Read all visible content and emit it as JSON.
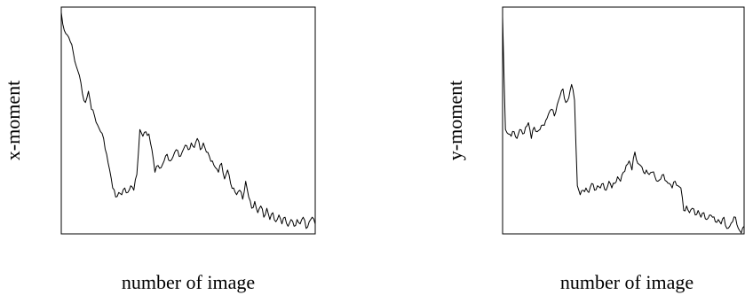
{
  "chart_data": [
    {
      "type": "line",
      "xlabel": "number of image",
      "ylabel": "x-moment",
      "grid": false,
      "series": [
        {
          "values": [
            0.98,
            0.9,
            0.88,
            0.85,
            0.8,
            0.74,
            0.7,
            0.62,
            0.58,
            0.63,
            0.55,
            0.52,
            0.48,
            0.45,
            0.42,
            0.35,
            0.28,
            0.2,
            0.16,
            0.18,
            0.17,
            0.2,
            0.18,
            0.21,
            0.19,
            0.26,
            0.46,
            0.43,
            0.45,
            0.44,
            0.37,
            0.27,
            0.3,
            0.29,
            0.32,
            0.35,
            0.32,
            0.34,
            0.37,
            0.34,
            0.36,
            0.39,
            0.37,
            0.4,
            0.38,
            0.42,
            0.37,
            0.4,
            0.36,
            0.34,
            0.32,
            0.29,
            0.27,
            0.31,
            0.24,
            0.28,
            0.22,
            0.2,
            0.17,
            0.19,
            0.15,
            0.23,
            0.16,
            0.11,
            0.14,
            0.09,
            0.12,
            0.07,
            0.11,
            0.06,
            0.09,
            0.05,
            0.08,
            0.04,
            0.07,
            0.03,
            0.06,
            0.03,
            0.06,
            0.04,
            0.07,
            0.02,
            0.05,
            0.07,
            0.04
          ]
        }
      ]
    },
    {
      "type": "line",
      "xlabel": "number of image",
      "ylabel": "y-moment",
      "grid": false,
      "series": [
        {
          "values": [
            0.96,
            0.46,
            0.44,
            0.43,
            0.45,
            0.42,
            0.46,
            0.44,
            0.47,
            0.49,
            0.42,
            0.47,
            0.45,
            0.46,
            0.48,
            0.5,
            0.53,
            0.55,
            0.52,
            0.57,
            0.61,
            0.64,
            0.58,
            0.6,
            0.66,
            0.59,
            0.21,
            0.17,
            0.19,
            0.2,
            0.18,
            0.22,
            0.19,
            0.21,
            0.2,
            0.22,
            0.19,
            0.23,
            0.2,
            0.22,
            0.25,
            0.23,
            0.27,
            0.3,
            0.32,
            0.28,
            0.36,
            0.31,
            0.3,
            0.27,
            0.28,
            0.26,
            0.27,
            0.25,
            0.23,
            0.24,
            0.26,
            0.23,
            0.22,
            0.2,
            0.23,
            0.21,
            0.2,
            0.1,
            0.12,
            0.09,
            0.11,
            0.08,
            0.1,
            0.07,
            0.09,
            0.06,
            0.08,
            0.07,
            0.05,
            0.06,
            0.04,
            0.07,
            0.02,
            0.03,
            0.05,
            0.07,
            0.02,
            0.0,
            0.03
          ]
        }
      ]
    }
  ]
}
